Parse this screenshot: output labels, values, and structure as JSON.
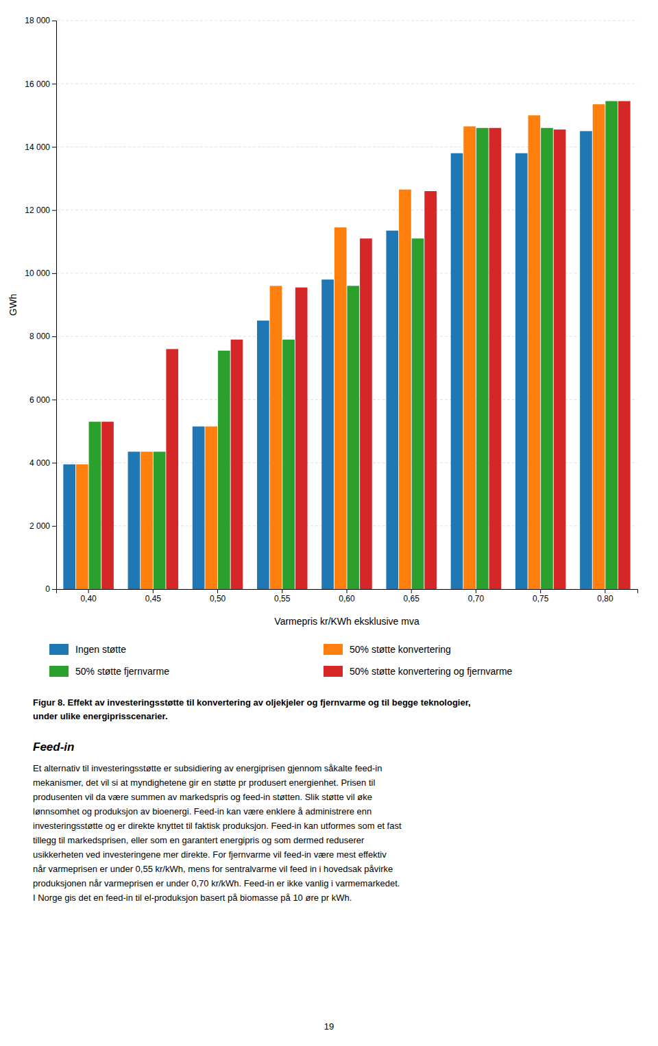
{
  "chart_data": {
    "type": "bar",
    "categories": [
      "0,40",
      "0,45",
      "0,50",
      "0,55",
      "0,60",
      "0,65",
      "0,70",
      "0,75",
      "0,80"
    ],
    "series": [
      {
        "name": "Ingen støtte",
        "values": [
          3950,
          4350,
          5150,
          8500,
          9800,
          11350,
          13800,
          13800,
          14500
        ]
      },
      {
        "name": "50% støtte konvertering",
        "values": [
          3950,
          4350,
          5150,
          9600,
          11450,
          12650,
          14650,
          15000,
          15350
        ]
      },
      {
        "name": "50% støtte fjernvarme",
        "values": [
          5300,
          4350,
          7550,
          7900,
          9600,
          11100,
          14600,
          14600,
          15450
        ]
      },
      {
        "name": "50% støtte konvertering og fjernvarme",
        "values": [
          5300,
          7600,
          7900,
          9550,
          11100,
          12600,
          14600,
          14550,
          15450
        ]
      }
    ],
    "ylabel": "GWh",
    "xlabel": "Varmepris kr/KWh eksklusive mva",
    "ylim": [
      0,
      18000
    ],
    "yticks": [
      0,
      {
        "value": 2000,
        "label": "2 000"
      },
      {
        "value": 4000,
        "label": "4 000"
      },
      {
        "value": 6000,
        "label": "6 000"
      },
      {
        "value": 8000,
        "label": "8 000"
      },
      {
        "value": 10000,
        "label": "10 000"
      },
      {
        "value": 12000,
        "label": "12 000"
      },
      {
        "value": 14000,
        "label": "14 000"
      },
      {
        "value": 16000,
        "label": "16 000"
      },
      {
        "value": 18000,
        "label": "18 000"
      }
    ],
    "grid": true,
    "legend": "bottom",
    "annotations": [
      "Figur 8. Effekt av investeringsstøtte til konvertering av oljekjeler og fjernvarme og til begge teknologier,",
      "under ulike energiprisscenarier.",
      "Feed-in",
      "Et alternativ til investeringsstøtte er subsidiering av energiprisen gjennom såkalte feed-in",
      "mekanismer, det vil si at myndighetene gir en støtte pr produsert energienhet. Prisen til",
      "produsenten vil da være summen av markedspris og feed-in støtten. Slik støtte vil øke",
      "lønnsomhet og produksjon av bioenergi. Feed-in kan være enklere å administrere enn",
      "investeringsstøtte og er direkte knyttet til faktisk produksjon. Feed-in kan utformes som et fast",
      "tillegg til markedsprisen, eller som en garantert energipris og som dermed reduserer",
      "usikkerheten ved investeringene mer direkte. For fjernvarme vil feed-in være mest effektiv",
      "når varmeprisen er under 0,55 kr/kWh, mens for sentralvarme vil feed in i hovedsak påvirke",
      "produksjonen når varmeprisen er under 0,70 kr/kWh. Feed-in er ikke vanlig i varmemarkedet.",
      "I Norge gis det en feed-in til el-produksjon basert på biomasse på 10 øre pr kWh.",
      "19"
    ]
  }
}
